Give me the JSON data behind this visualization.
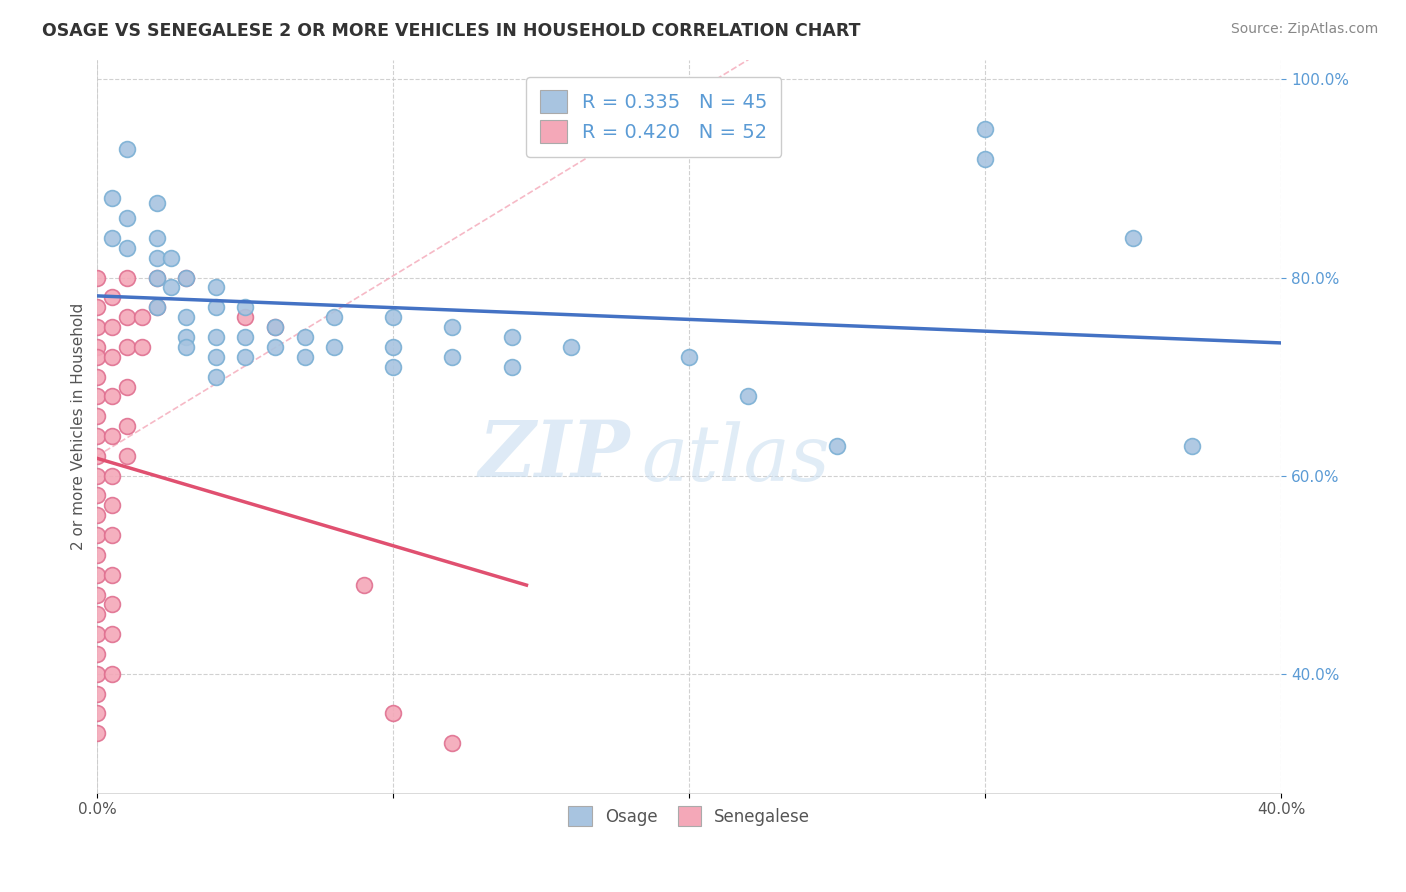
{
  "title": "OSAGE VS SENEGALESE 2 OR MORE VEHICLES IN HOUSEHOLD CORRELATION CHART",
  "source": "Source: ZipAtlas.com",
  "ylabel": "2 or more Vehicles in Household",
  "xlim": [
    0.0,
    0.4
  ],
  "ylim": [
    0.28,
    1.02
  ],
  "osage_R": 0.335,
  "osage_N": 45,
  "senegalese_R": 0.42,
  "senegalese_N": 52,
  "osage_color": "#a8c4e0",
  "osage_edge_color": "#7aafd4",
  "senegalese_color": "#f4a8b8",
  "senegalese_edge_color": "#e07090",
  "osage_line_color": "#4472c4",
  "senegalese_line_color": "#e05070",
  "ref_line_color": "#f4a8b8",
  "background_color": "#ffffff",
  "grid_color": "#cccccc",
  "watermark_zip": "ZIP",
  "watermark_atlas": "atlas",
  "ytick_color": "#5b9bd5",
  "osage_scatter": [
    [
      0.005,
      0.88
    ],
    [
      0.005,
      0.84
    ],
    [
      0.01,
      0.93
    ],
    [
      0.01,
      0.86
    ],
    [
      0.01,
      0.83
    ],
    [
      0.02,
      0.875
    ],
    [
      0.02,
      0.84
    ],
    [
      0.02,
      0.82
    ],
    [
      0.02,
      0.8
    ],
    [
      0.02,
      0.77
    ],
    [
      0.025,
      0.82
    ],
    [
      0.025,
      0.79
    ],
    [
      0.03,
      0.8
    ],
    [
      0.03,
      0.76
    ],
    [
      0.03,
      0.74
    ],
    [
      0.03,
      0.73
    ],
    [
      0.04,
      0.79
    ],
    [
      0.04,
      0.77
    ],
    [
      0.04,
      0.74
    ],
    [
      0.04,
      0.72
    ],
    [
      0.04,
      0.7
    ],
    [
      0.05,
      0.77
    ],
    [
      0.05,
      0.74
    ],
    [
      0.05,
      0.72
    ],
    [
      0.06,
      0.75
    ],
    [
      0.06,
      0.73
    ],
    [
      0.07,
      0.74
    ],
    [
      0.07,
      0.72
    ],
    [
      0.08,
      0.76
    ],
    [
      0.08,
      0.73
    ],
    [
      0.1,
      0.76
    ],
    [
      0.1,
      0.73
    ],
    [
      0.1,
      0.71
    ],
    [
      0.12,
      0.75
    ],
    [
      0.12,
      0.72
    ],
    [
      0.14,
      0.74
    ],
    [
      0.14,
      0.71
    ],
    [
      0.16,
      0.73
    ],
    [
      0.2,
      0.72
    ],
    [
      0.22,
      0.68
    ],
    [
      0.25,
      0.63
    ],
    [
      0.3,
      0.95
    ],
    [
      0.3,
      0.92
    ],
    [
      0.35,
      0.84
    ],
    [
      0.37,
      0.63
    ]
  ],
  "senegalese_scatter": [
    [
      0.0,
      0.8
    ],
    [
      0.0,
      0.77
    ],
    [
      0.0,
      0.75
    ],
    [
      0.0,
      0.73
    ],
    [
      0.0,
      0.72
    ],
    [
      0.0,
      0.7
    ],
    [
      0.0,
      0.68
    ],
    [
      0.0,
      0.66
    ],
    [
      0.0,
      0.64
    ],
    [
      0.0,
      0.62
    ],
    [
      0.0,
      0.6
    ],
    [
      0.0,
      0.58
    ],
    [
      0.0,
      0.56
    ],
    [
      0.0,
      0.54
    ],
    [
      0.0,
      0.52
    ],
    [
      0.0,
      0.5
    ],
    [
      0.0,
      0.48
    ],
    [
      0.0,
      0.46
    ],
    [
      0.0,
      0.44
    ],
    [
      0.0,
      0.42
    ],
    [
      0.0,
      0.4
    ],
    [
      0.0,
      0.38
    ],
    [
      0.0,
      0.36
    ],
    [
      0.0,
      0.34
    ],
    [
      0.005,
      0.78
    ],
    [
      0.005,
      0.75
    ],
    [
      0.005,
      0.72
    ],
    [
      0.005,
      0.68
    ],
    [
      0.005,
      0.64
    ],
    [
      0.005,
      0.6
    ],
    [
      0.005,
      0.57
    ],
    [
      0.005,
      0.54
    ],
    [
      0.005,
      0.5
    ],
    [
      0.005,
      0.47
    ],
    [
      0.005,
      0.44
    ],
    [
      0.005,
      0.4
    ],
    [
      0.01,
      0.8
    ],
    [
      0.01,
      0.76
    ],
    [
      0.01,
      0.73
    ],
    [
      0.01,
      0.69
    ],
    [
      0.01,
      0.65
    ],
    [
      0.01,
      0.62
    ],
    [
      0.015,
      0.76
    ],
    [
      0.015,
      0.73
    ],
    [
      0.02,
      0.8
    ],
    [
      0.02,
      0.77
    ],
    [
      0.03,
      0.8
    ],
    [
      0.05,
      0.76
    ],
    [
      0.06,
      0.75
    ],
    [
      0.09,
      0.49
    ],
    [
      0.1,
      0.36
    ],
    [
      0.12,
      0.33
    ]
  ]
}
